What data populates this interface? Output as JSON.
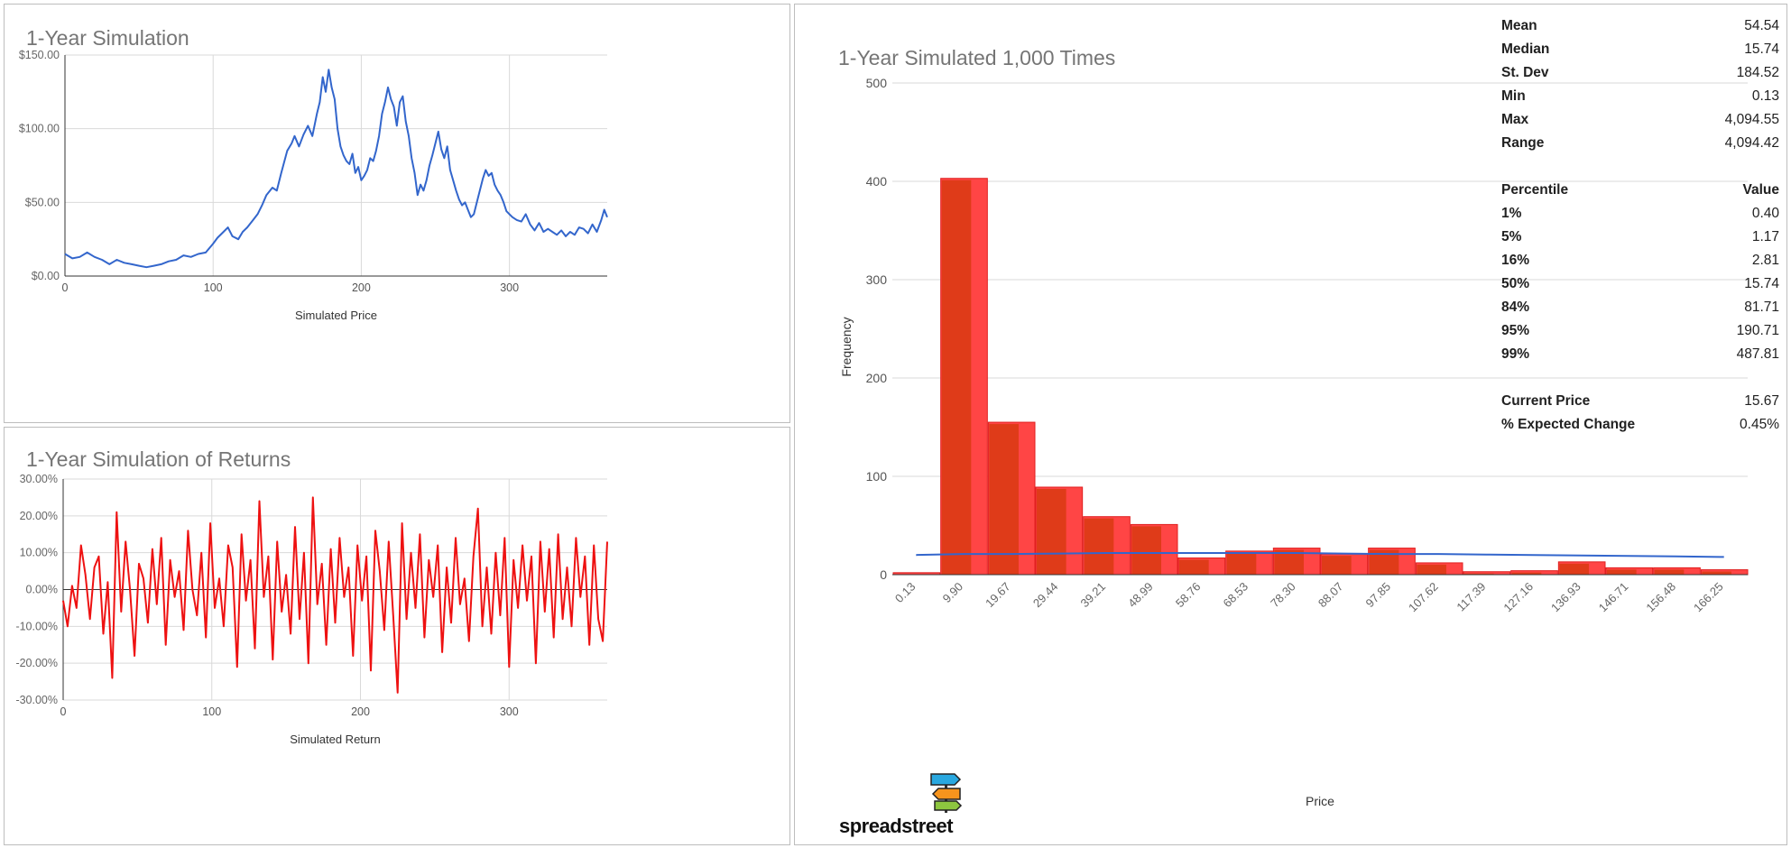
{
  "panels": {
    "price": {
      "title": "1-Year Simulation"
    },
    "returns": {
      "title": "1-Year Simulation of Returns"
    },
    "histogram": {
      "title": "1-Year Simulated 1,000 Times"
    }
  },
  "stats": {
    "summary": [
      {
        "label": "Mean",
        "value": "54.54"
      },
      {
        "label": "Median",
        "value": "15.74"
      },
      {
        "label": "St. Dev",
        "value": "184.52"
      },
      {
        "label": "Min",
        "value": "0.13"
      },
      {
        "label": "Max",
        "value": "4,094.55"
      },
      {
        "label": "Range",
        "value": "4,094.42"
      }
    ],
    "percentile_header": {
      "label": "Percentile",
      "value": "Value"
    },
    "percentiles": [
      {
        "label": "1%",
        "value": "0.40"
      },
      {
        "label": "5%",
        "value": "1.17"
      },
      {
        "label": "16%",
        "value": "2.81"
      },
      {
        "label": "50%",
        "value": "15.74"
      },
      {
        "label": "84%",
        "value": "81.71"
      },
      {
        "label": "95%",
        "value": "190.71"
      },
      {
        "label": "99%",
        "value": "487.81"
      }
    ],
    "extra": [
      {
        "label": "Current Price",
        "value": "15.67"
      },
      {
        "label": "% Expected Change",
        "value": "0.45%"
      }
    ]
  },
  "logo": {
    "text": "spreadstreet"
  },
  "chart_data": [
    {
      "type": "line",
      "title": "1-Year Simulation",
      "xlabel": "Simulated Price",
      "ylabel": "",
      "xlim": [
        0,
        366
      ],
      "ylim": [
        0,
        150
      ],
      "xticks": [
        0,
        100,
        200,
        300
      ],
      "xtick_labels": [
        "0",
        "100",
        "200",
        "300"
      ],
      "yticks": [
        0,
        50,
        100,
        150
      ],
      "ytick_labels": [
        "$0.00",
        "$50.00",
        "$100.00",
        "$150.00"
      ],
      "grid": true,
      "color": "#3366cc",
      "series": [
        {
          "x": [
            0,
            5,
            10,
            15,
            20,
            25,
            30,
            35,
            40,
            45,
            50,
            55,
            60,
            65,
            70,
            75,
            80,
            85,
            90,
            95,
            100,
            103,
            107,
            110,
            113,
            117,
            120,
            123,
            127,
            130,
            133,
            136,
            140,
            143,
            146,
            150,
            153,
            155,
            158,
            161,
            164,
            167,
            170,
            172,
            174,
            176,
            178,
            180,
            182,
            184,
            186,
            188,
            190,
            192,
            194,
            196,
            198,
            200,
            202,
            204,
            206,
            208,
            210,
            212,
            214,
            216,
            218,
            220,
            222,
            224,
            226,
            228,
            230,
            232,
            234,
            236,
            238,
            240,
            242,
            244,
            246,
            248,
            250,
            252,
            254,
            256,
            258,
            260,
            262,
            264,
            266,
            268,
            270,
            272,
            274,
            276,
            278,
            280,
            282,
            284,
            286,
            288,
            290,
            292,
            294,
            296,
            298,
            300,
            302,
            305,
            308,
            311,
            314,
            317,
            320,
            323,
            326,
            329,
            332,
            335,
            338,
            341,
            344,
            347,
            350,
            353,
            356,
            359,
            362,
            364,
            366
          ],
          "y": [
            15,
            12,
            13,
            16,
            13,
            11,
            8,
            11,
            9,
            8,
            7,
            6,
            7,
            8,
            10,
            11,
            14,
            13,
            15,
            16,
            22,
            26,
            30,
            33,
            27,
            25,
            30,
            33,
            38,
            42,
            48,
            55,
            60,
            58,
            70,
            85,
            90,
            95,
            88,
            96,
            102,
            95,
            110,
            118,
            135,
            125,
            140,
            128,
            120,
            100,
            88,
            82,
            78,
            76,
            83,
            70,
            74,
            65,
            68,
            72,
            80,
            78,
            85,
            95,
            110,
            118,
            128,
            120,
            115,
            102,
            118,
            122,
            105,
            95,
            80,
            70,
            55,
            62,
            58,
            65,
            75,
            82,
            90,
            98,
            86,
            80,
            88,
            72,
            65,
            58,
            52,
            48,
            50,
            45,
            40,
            42,
            50,
            58,
            66,
            72,
            68,
            70,
            62,
            58,
            55,
            50,
            44,
            42,
            40,
            38,
            37,
            42,
            35,
            31,
            36,
            30,
            32,
            30,
            28,
            31,
            27,
            30,
            28,
            33,
            32,
            29,
            35,
            30,
            38,
            45,
            40
          ]
        }
      ]
    },
    {
      "type": "line",
      "title": "1-Year Simulation of Returns",
      "xlabel": "Simulated Return",
      "ylabel": "",
      "xlim": [
        0,
        366
      ],
      "ylim": [
        -30,
        30
      ],
      "xticks": [
        0,
        100,
        200,
        300
      ],
      "xtick_labels": [
        "0",
        "100",
        "200",
        "300"
      ],
      "yticks": [
        -30,
        -20,
        -10,
        0,
        10,
        20,
        30
      ],
      "ytick_labels": [
        "-30.00%",
        "-20.00%",
        "-10.00%",
        "0.00%",
        "10.00%",
        "20.00%",
        "30.00%"
      ],
      "grid": true,
      "color": "#ee1111",
      "series": [
        {
          "x": [
            0,
            3,
            6,
            9,
            12,
            15,
            18,
            21,
            24,
            27,
            30,
            33,
            36,
            39,
            42,
            45,
            48,
            51,
            54,
            57,
            60,
            63,
            66,
            69,
            72,
            75,
            78,
            81,
            84,
            87,
            90,
            93,
            96,
            99,
            102,
            105,
            108,
            111,
            114,
            117,
            120,
            123,
            126,
            129,
            132,
            135,
            138,
            141,
            144,
            147,
            150,
            153,
            156,
            159,
            162,
            165,
            168,
            171,
            174,
            177,
            180,
            183,
            186,
            189,
            192,
            195,
            198,
            201,
            204,
            207,
            210,
            213,
            216,
            219,
            222,
            225,
            228,
            231,
            234,
            237,
            240,
            243,
            246,
            249,
            252,
            255,
            258,
            261,
            264,
            267,
            270,
            273,
            276,
            279,
            282,
            285,
            288,
            291,
            294,
            297,
            300,
            303,
            306,
            309,
            312,
            315,
            318,
            321,
            324,
            327,
            330,
            333,
            336,
            339,
            342,
            345,
            348,
            351,
            354,
            357,
            360,
            363,
            366
          ],
          "y": [
            -3,
            -10,
            1,
            -5,
            12,
            4,
            -8,
            6,
            9,
            -12,
            2,
            -24,
            21,
            -6,
            13,
            0,
            -18,
            7,
            3,
            -9,
            11,
            -4,
            14,
            -15,
            8,
            -2,
            5,
            -11,
            16,
            0,
            -7,
            10,
            -13,
            18,
            -5,
            3,
            -10,
            12,
            6,
            -21,
            15,
            -3,
            8,
            -16,
            24,
            -2,
            9,
            -19,
            13,
            -6,
            4,
            -12,
            17,
            -8,
            10,
            -20,
            25,
            -4,
            7,
            -15,
            11,
            -9,
            14,
            -2,
            6,
            -18,
            12,
            -3,
            9,
            -22,
            16,
            5,
            -11,
            13,
            -7,
            -28,
            18,
            -8,
            10,
            -5,
            15,
            -13,
            8,
            -2,
            12,
            -17,
            6,
            -9,
            14,
            -4,
            3,
            -14,
            9,
            22,
            -10,
            6,
            -12,
            10,
            -7,
            14,
            -21,
            8,
            -5,
            12,
            -3,
            9,
            -20,
            13,
            -6,
            11,
            -13,
            15,
            -8,
            6,
            -10,
            14,
            -2,
            9,
            -15,
            12,
            -8,
            -14,
            13
          ]
        }
      ]
    },
    {
      "type": "bar",
      "title": "1-Year Simulated 1,000 Times",
      "xlabel": "Price",
      "ylabel": "Frequency",
      "ylim": [
        0,
        500
      ],
      "yticks": [
        0,
        100,
        200,
        300,
        400,
        500
      ],
      "ytick_labels": [
        "0",
        "100",
        "200",
        "300",
        "400",
        "500"
      ],
      "grid": true,
      "bar_color": "#ff4545",
      "categories": [
        "0.13",
        "9.90",
        "19.67",
        "29.44",
        "39.21",
        "48.99",
        "58.76",
        "68.53",
        "78.30",
        "88.07",
        "97.85",
        "107.62",
        "117.39",
        "127.16",
        "136.93",
        "146.71",
        "156.48",
        "166.25"
      ],
      "values": [
        2,
        403,
        155,
        89,
        59,
        51,
        17,
        24,
        27,
        21,
        27,
        12,
        3,
        4,
        13,
        7,
        7,
        5
      ],
      "series": [
        {
          "type": "line",
          "color": "#3366cc",
          "values": [
            20,
            21,
            21,
            21.5,
            22,
            22,
            22,
            22,
            22,
            21.5,
            21,
            21,
            20.5,
            20,
            19.5,
            19,
            18.5,
            18
          ]
        }
      ]
    }
  ]
}
